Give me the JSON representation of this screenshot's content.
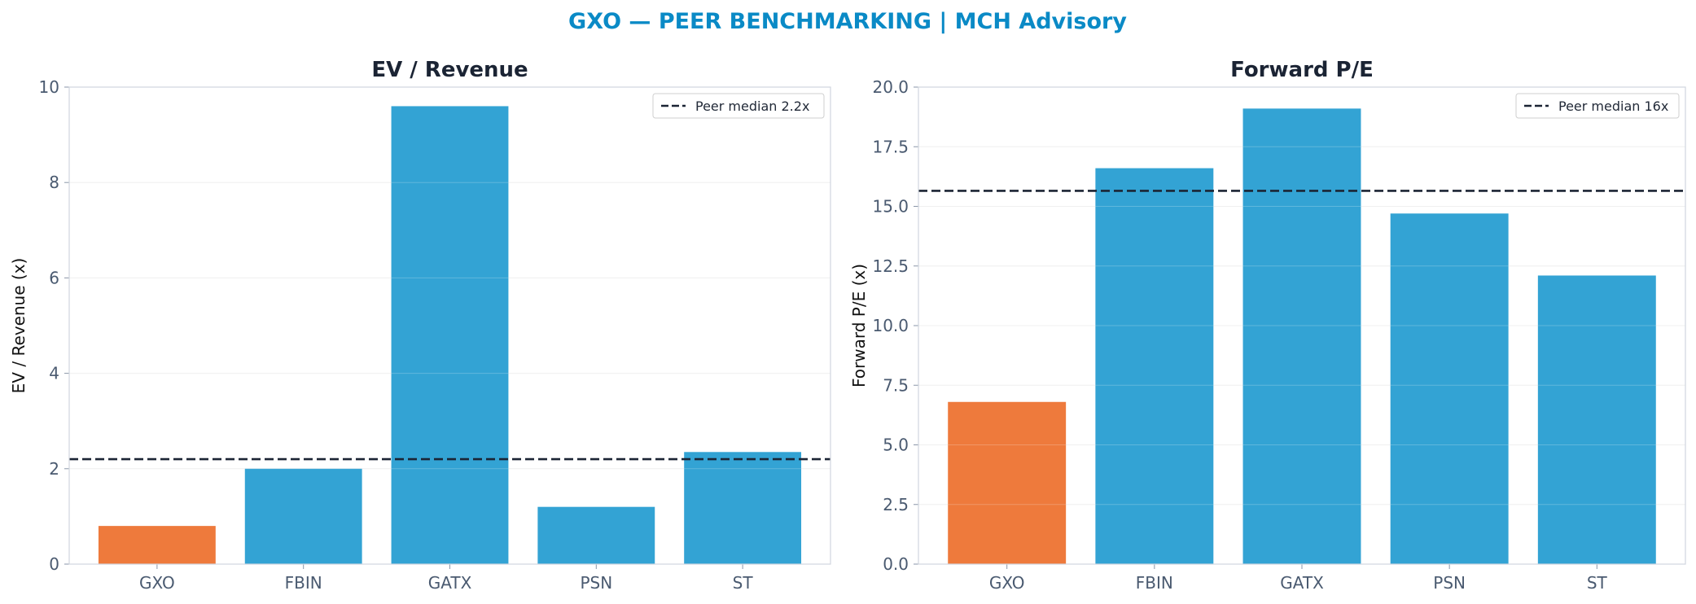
{
  "figure": {
    "title": "GXO — PEER BENCHMARKING | MCH Advisory"
  },
  "colors": {
    "highlight": "#ee7a3c",
    "peer": "#33a3d4",
    "median_line": "#1b2434",
    "title": "#0a8ac6"
  },
  "chart_data": [
    {
      "type": "bar",
      "title": "EV / Revenue",
      "xlabel": "",
      "ylabel": "EV / Revenue (x)",
      "categories": [
        "GXO",
        "FBIN",
        "GATX",
        "PSN",
        "ST"
      ],
      "values": [
        0.8,
        2.0,
        9.6,
        1.2,
        2.35
      ],
      "highlight": "GXO",
      "ylim": [
        0,
        10
      ],
      "yticks": [
        0,
        2,
        4,
        6,
        8,
        10
      ],
      "ytick_labels": [
        "0",
        "2",
        "4",
        "6",
        "8",
        "10"
      ],
      "reference_line": {
        "value": 2.2,
        "label": "Peer median 2.2x",
        "style": "dashed"
      },
      "legend_position": "upper-right",
      "grid": "y"
    },
    {
      "type": "bar",
      "title": "Forward P/E",
      "xlabel": "",
      "ylabel": "Forward P/E (x)",
      "categories": [
        "GXO",
        "FBIN",
        "GATX",
        "PSN",
        "ST"
      ],
      "values": [
        6.8,
        16.6,
        19.1,
        14.7,
        12.1
      ],
      "highlight": "GXO",
      "ylim": [
        0,
        20
      ],
      "yticks": [
        0,
        2.5,
        5,
        7.5,
        10,
        12.5,
        15,
        17.5,
        20
      ],
      "ytick_labels": [
        "0.0",
        "2.5",
        "5.0",
        "7.5",
        "10.0",
        "12.5",
        "15.0",
        "17.5",
        "20.0"
      ],
      "reference_line": {
        "value": 15.65,
        "label": "Peer median 16x",
        "style": "dashed"
      },
      "legend_position": "upper-right",
      "grid": "y"
    }
  ]
}
